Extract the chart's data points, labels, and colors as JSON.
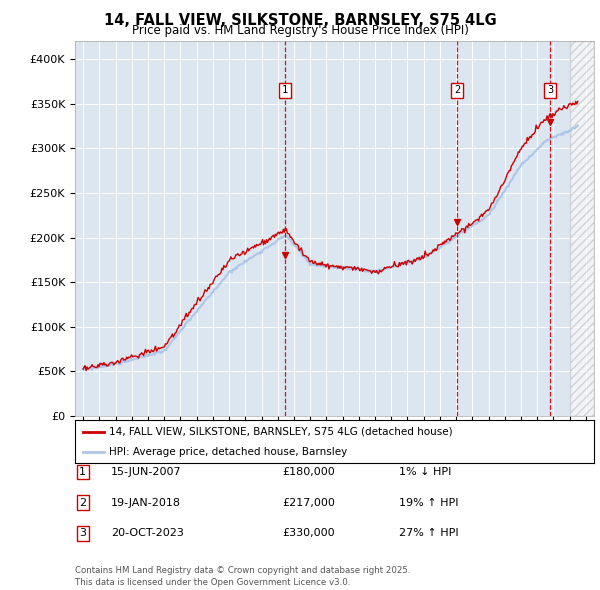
{
  "title": "14, FALL VIEW, SILKSTONE, BARNSLEY, S75 4LG",
  "subtitle": "Price paid vs. HM Land Registry's House Price Index (HPI)",
  "ylabel_ticks": [
    "£0",
    "£50K",
    "£100K",
    "£150K",
    "£200K",
    "£250K",
    "£300K",
    "£350K",
    "£400K"
  ],
  "ytick_values": [
    0,
    50000,
    100000,
    150000,
    200000,
    250000,
    300000,
    350000,
    400000
  ],
  "ylim": [
    0,
    420000
  ],
  "xlim_start": 1994.5,
  "xlim_end": 2026.5,
  "plot_bg": "#dce6f0",
  "hpi_color": "#aec6e8",
  "price_color": "#cc0000",
  "legend_label_price": "14, FALL VIEW, SILKSTONE, BARNSLEY, S75 4LG (detached house)",
  "legend_label_hpi": "HPI: Average price, detached house, Barnsley",
  "transactions": [
    {
      "num": 1,
      "date": "15-JUN-2007",
      "price": 180000,
      "pct": "1%",
      "dir": "↓",
      "year": 2007.46
    },
    {
      "num": 2,
      "date": "19-JAN-2018",
      "price": 217000,
      "pct": "19%",
      "dir": "↑",
      "year": 2018.05
    },
    {
      "num": 3,
      "date": "20-OCT-2023",
      "price": 330000,
      "pct": "27%",
      "dir": "↑",
      "year": 2023.8
    }
  ],
  "footer": "Contains HM Land Registry data © Crown copyright and database right 2025.\nThis data is licensed under the Open Government Licence v3.0.",
  "hatched_region_start": 2025.0,
  "hatched_region_end": 2026.5
}
